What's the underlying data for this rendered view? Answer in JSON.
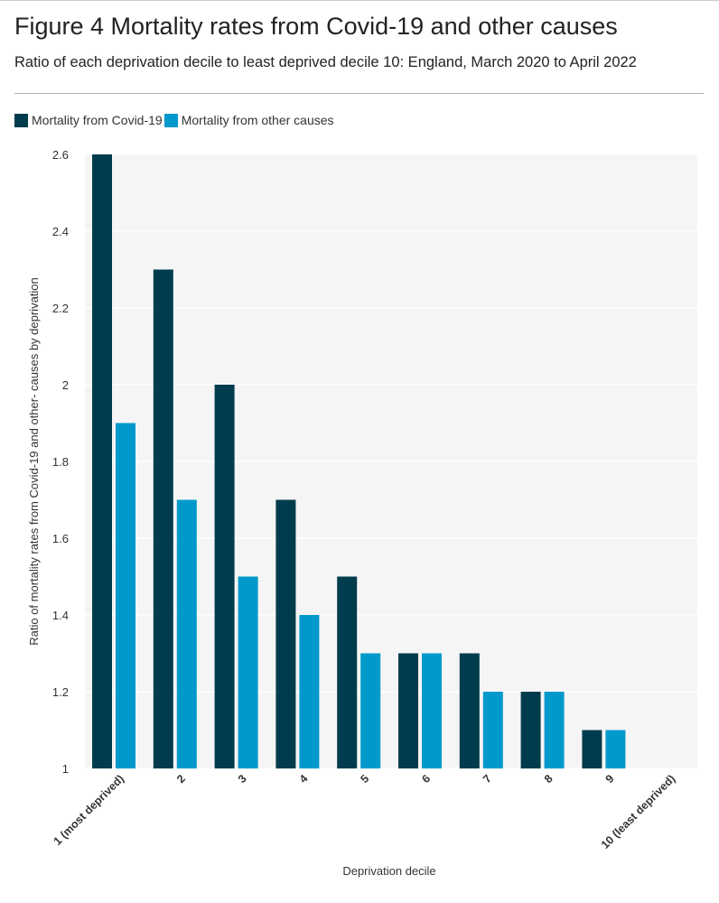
{
  "header": {
    "title": "Figure 4 Mortality rates from Covid-19 and other causes",
    "subtitle": "Ratio of each deprivation decile to least deprived decile 10: England, March 2020 to April 2022"
  },
  "colors": {
    "covid": "#003c4d",
    "other": "#0099cc",
    "plot_background": "#f5f5f5",
    "gridline": "#ffffff",
    "tick_text": "#333333",
    "axis_title_text": "#333333"
  },
  "chart_data": {
    "type": "bar",
    "categories": [
      "1 (most deprived)",
      "2",
      "3",
      "4",
      "5",
      "6",
      "7",
      "8",
      "9",
      "10 (least deprived)"
    ],
    "series": [
      {
        "name": "Mortality from Covid-19",
        "values": [
          2.6,
          2.3,
          2.0,
          1.7,
          1.5,
          1.3,
          1.3,
          1.2,
          1.1,
          1.0
        ]
      },
      {
        "name": "Mortality from other causes",
        "values": [
          1.9,
          1.7,
          1.5,
          1.4,
          1.3,
          1.3,
          1.2,
          1.2,
          1.1,
          1.0
        ]
      }
    ],
    "xlabel": "Deprivation decile",
    "ylabel": "Ratio of mortality rates from Covid-19 and other- causes by deprivation",
    "ylim": [
      1,
      2.6
    ],
    "yticks": [
      1,
      1.2,
      1.4,
      1.6,
      1.8,
      2,
      2.2,
      2.4,
      2.6
    ],
    "ytick_labels": [
      "1",
      "1.2",
      "1.4",
      "1.6",
      "1.8",
      "2",
      "2.2",
      "2.4",
      "2.6"
    ],
    "grid": true,
    "legend_position": "top-left"
  }
}
